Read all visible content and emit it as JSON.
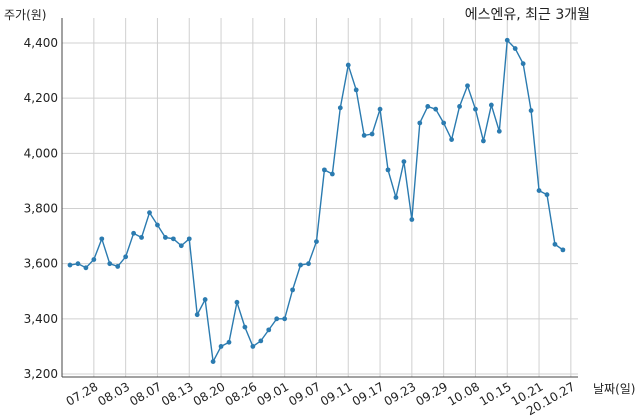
{
  "chart_data": {
    "type": "line",
    "title": "에스엔유, 최근 3개월",
    "ylabel": "주가(원)",
    "xlabel": "날짜(일)",
    "ylim": [
      3200,
      4400
    ],
    "yticks": [
      "3,200",
      "3,400",
      "3,600",
      "3,800",
      "4,000",
      "4,200",
      "4,400"
    ],
    "ytick_values": [
      3200,
      3400,
      3600,
      3800,
      4000,
      4200,
      4400
    ],
    "xtick_labels": [
      "07.28",
      "08.03",
      "08.07",
      "08.13",
      "08.20",
      "08.26",
      "09.01",
      "09.07",
      "09.11",
      "09.17",
      "09.23",
      "09.29",
      "10.08",
      "10.15",
      "10.21",
      "20.10.27"
    ],
    "xtick_indices": [
      3,
      7,
      11,
      15,
      19,
      23,
      27,
      31,
      35,
      39,
      43,
      47,
      51,
      55,
      59,
      63
    ],
    "grid": true,
    "color": "#2b7bb0",
    "series": [
      {
        "values": [
          3595,
          3600,
          3585,
          3615,
          3690,
          3600,
          3590,
          3625,
          3710,
          3695,
          3785,
          3740,
          3695,
          3690,
          3665,
          3690,
          3415,
          3470,
          3245,
          3300,
          3315,
          3460,
          3370,
          3300,
          3320,
          3360,
          3400,
          3400,
          3505,
          3595,
          3600,
          3680,
          3940,
          3925,
          4165,
          4320,
          4230,
          4065,
          4070,
          4160,
          3940,
          3840,
          3970,
          3760,
          4110,
          4170,
          4160,
          4110,
          4050,
          4170,
          4245,
          4160,
          4045,
          4175,
          4080,
          4410,
          4380,
          4325,
          4155,
          3865,
          3850,
          3670,
          3650
        ]
      }
    ]
  }
}
